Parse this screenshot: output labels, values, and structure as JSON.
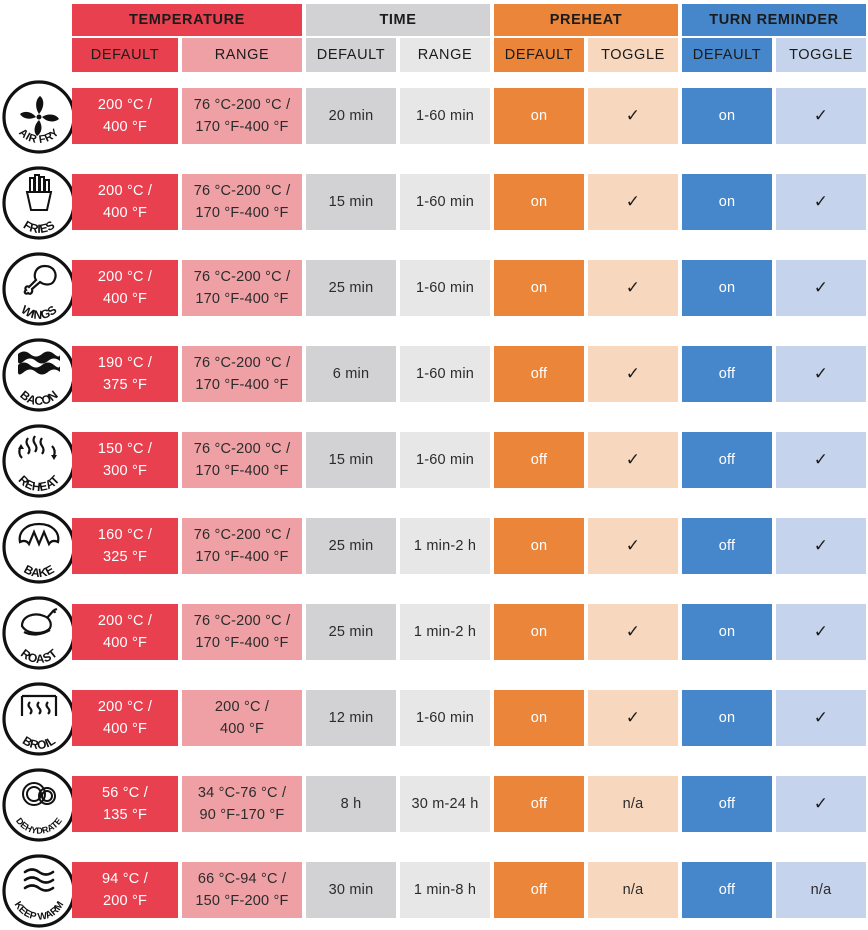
{
  "headers": {
    "temperature": "TEMPERATURE",
    "time": "TIME",
    "preheat": "PREHEAT",
    "turn_reminder": "TURN REMINDER"
  },
  "subheaders": {
    "temp_default": "DEFAULT",
    "temp_range": "RANGE",
    "time_default": "DEFAULT",
    "time_range": "RANGE",
    "preheat_default": "DEFAULT",
    "preheat_toggle": "TOGGLE",
    "reminder_default": "DEFAULT",
    "reminder_toggle": "TOGGLE"
  },
  "rows": [
    {
      "mode": "AIR FRY",
      "icon": "fan-icon",
      "temp_default": [
        "200 °C /",
        "400 °F"
      ],
      "temp_range": [
        "76 °C-200 °C /",
        "170 °F-400 °F"
      ],
      "time_default": "20 min",
      "time_range": "1-60 min",
      "preheat_default": "on",
      "preheat_toggle": "✓",
      "reminder_default": "on",
      "reminder_toggle": "✓"
    },
    {
      "mode": "FRIES",
      "icon": "fries-icon",
      "temp_default": [
        "200 °C /",
        "400 °F"
      ],
      "temp_range": [
        "76 °C-200 °C /",
        "170 °F-400 °F"
      ],
      "time_default": "15 min",
      "time_range": "1-60 min",
      "preheat_default": "on",
      "preheat_toggle": "✓",
      "reminder_default": "on",
      "reminder_toggle": "✓"
    },
    {
      "mode": "WINGS",
      "icon": "drumstick-icon",
      "temp_default": [
        "200 °C /",
        "400 °F"
      ],
      "temp_range": [
        "76 °C-200 °C /",
        "170 °F-400 °F"
      ],
      "time_default": "25 min",
      "time_range": "1-60 min",
      "preheat_default": "on",
      "preheat_toggle": "✓",
      "reminder_default": "on",
      "reminder_toggle": "✓"
    },
    {
      "mode": "BACON",
      "icon": "bacon-icon",
      "temp_default": [
        "190 °C /",
        "375 °F"
      ],
      "temp_range": [
        "76 °C-200 °C /",
        "170 °F-400 °F"
      ],
      "time_default": "6 min",
      "time_range": "1-60 min",
      "preheat_default": "off",
      "preheat_toggle": "✓",
      "reminder_default": "off",
      "reminder_toggle": "✓"
    },
    {
      "mode": "REHEAT",
      "icon": "reheat-icon",
      "temp_default": [
        "150 °C /",
        "300 °F"
      ],
      "temp_range": [
        "76 °C-200 °C /",
        "170 °F-400 °F"
      ],
      "time_default": "15 min",
      "time_range": "1-60 min",
      "preheat_default": "off",
      "preheat_toggle": "✓",
      "reminder_default": "off",
      "reminder_toggle": "✓"
    },
    {
      "mode": "BAKE",
      "icon": "croissant-icon",
      "temp_default": [
        "160 °C /",
        "325 °F"
      ],
      "temp_range": [
        "76 °C-200 °C /",
        "170 °F-400 °F"
      ],
      "time_default": "25 min",
      "time_range": "1 min-2 h",
      "preheat_default": "on",
      "preheat_toggle": "✓",
      "reminder_default": "off",
      "reminder_toggle": "✓"
    },
    {
      "mode": "ROAST",
      "icon": "roast-chicken-icon",
      "temp_default": [
        "200 °C /",
        "400 °F"
      ],
      "temp_range": [
        "76 °C-200 °C /",
        "170 °F-400 °F"
      ],
      "time_default": "25 min",
      "time_range": "1 min-2 h",
      "preheat_default": "on",
      "preheat_toggle": "✓",
      "reminder_default": "on",
      "reminder_toggle": "✓"
    },
    {
      "mode": "BROIL",
      "icon": "broil-icon",
      "temp_default": [
        "200 °C /",
        "400 °F"
      ],
      "temp_range": [
        "200 °C /",
        "400 °F"
      ],
      "time_default": "12 min",
      "time_range": "1-60 min",
      "preheat_default": "on",
      "preheat_toggle": "✓",
      "reminder_default": "on",
      "reminder_toggle": "✓"
    },
    {
      "mode": "DEHYDRATE",
      "icon": "dehydrate-icon",
      "temp_default": [
        "56 °C /",
        "135 °F"
      ],
      "temp_range": [
        "34 °C-76 °C /",
        "90 °F-170 °F"
      ],
      "time_default": "8 h",
      "time_range": "30 m-24 h",
      "preheat_default": "off",
      "preheat_toggle": "n/a",
      "reminder_default": "off",
      "reminder_toggle": "✓"
    },
    {
      "mode": "KEEP WARM",
      "icon": "keep-warm-icon",
      "temp_default": [
        "94 °C /",
        "200 °F"
      ],
      "temp_range": [
        "66 °C-94 °C /",
        "150 °F-200 °F"
      ],
      "time_default": "30 min",
      "time_range": "1 min-8 h",
      "preheat_default": "off",
      "preheat_toggle": "n/a",
      "reminder_default": "off",
      "reminder_toggle": "n/a"
    }
  ]
}
